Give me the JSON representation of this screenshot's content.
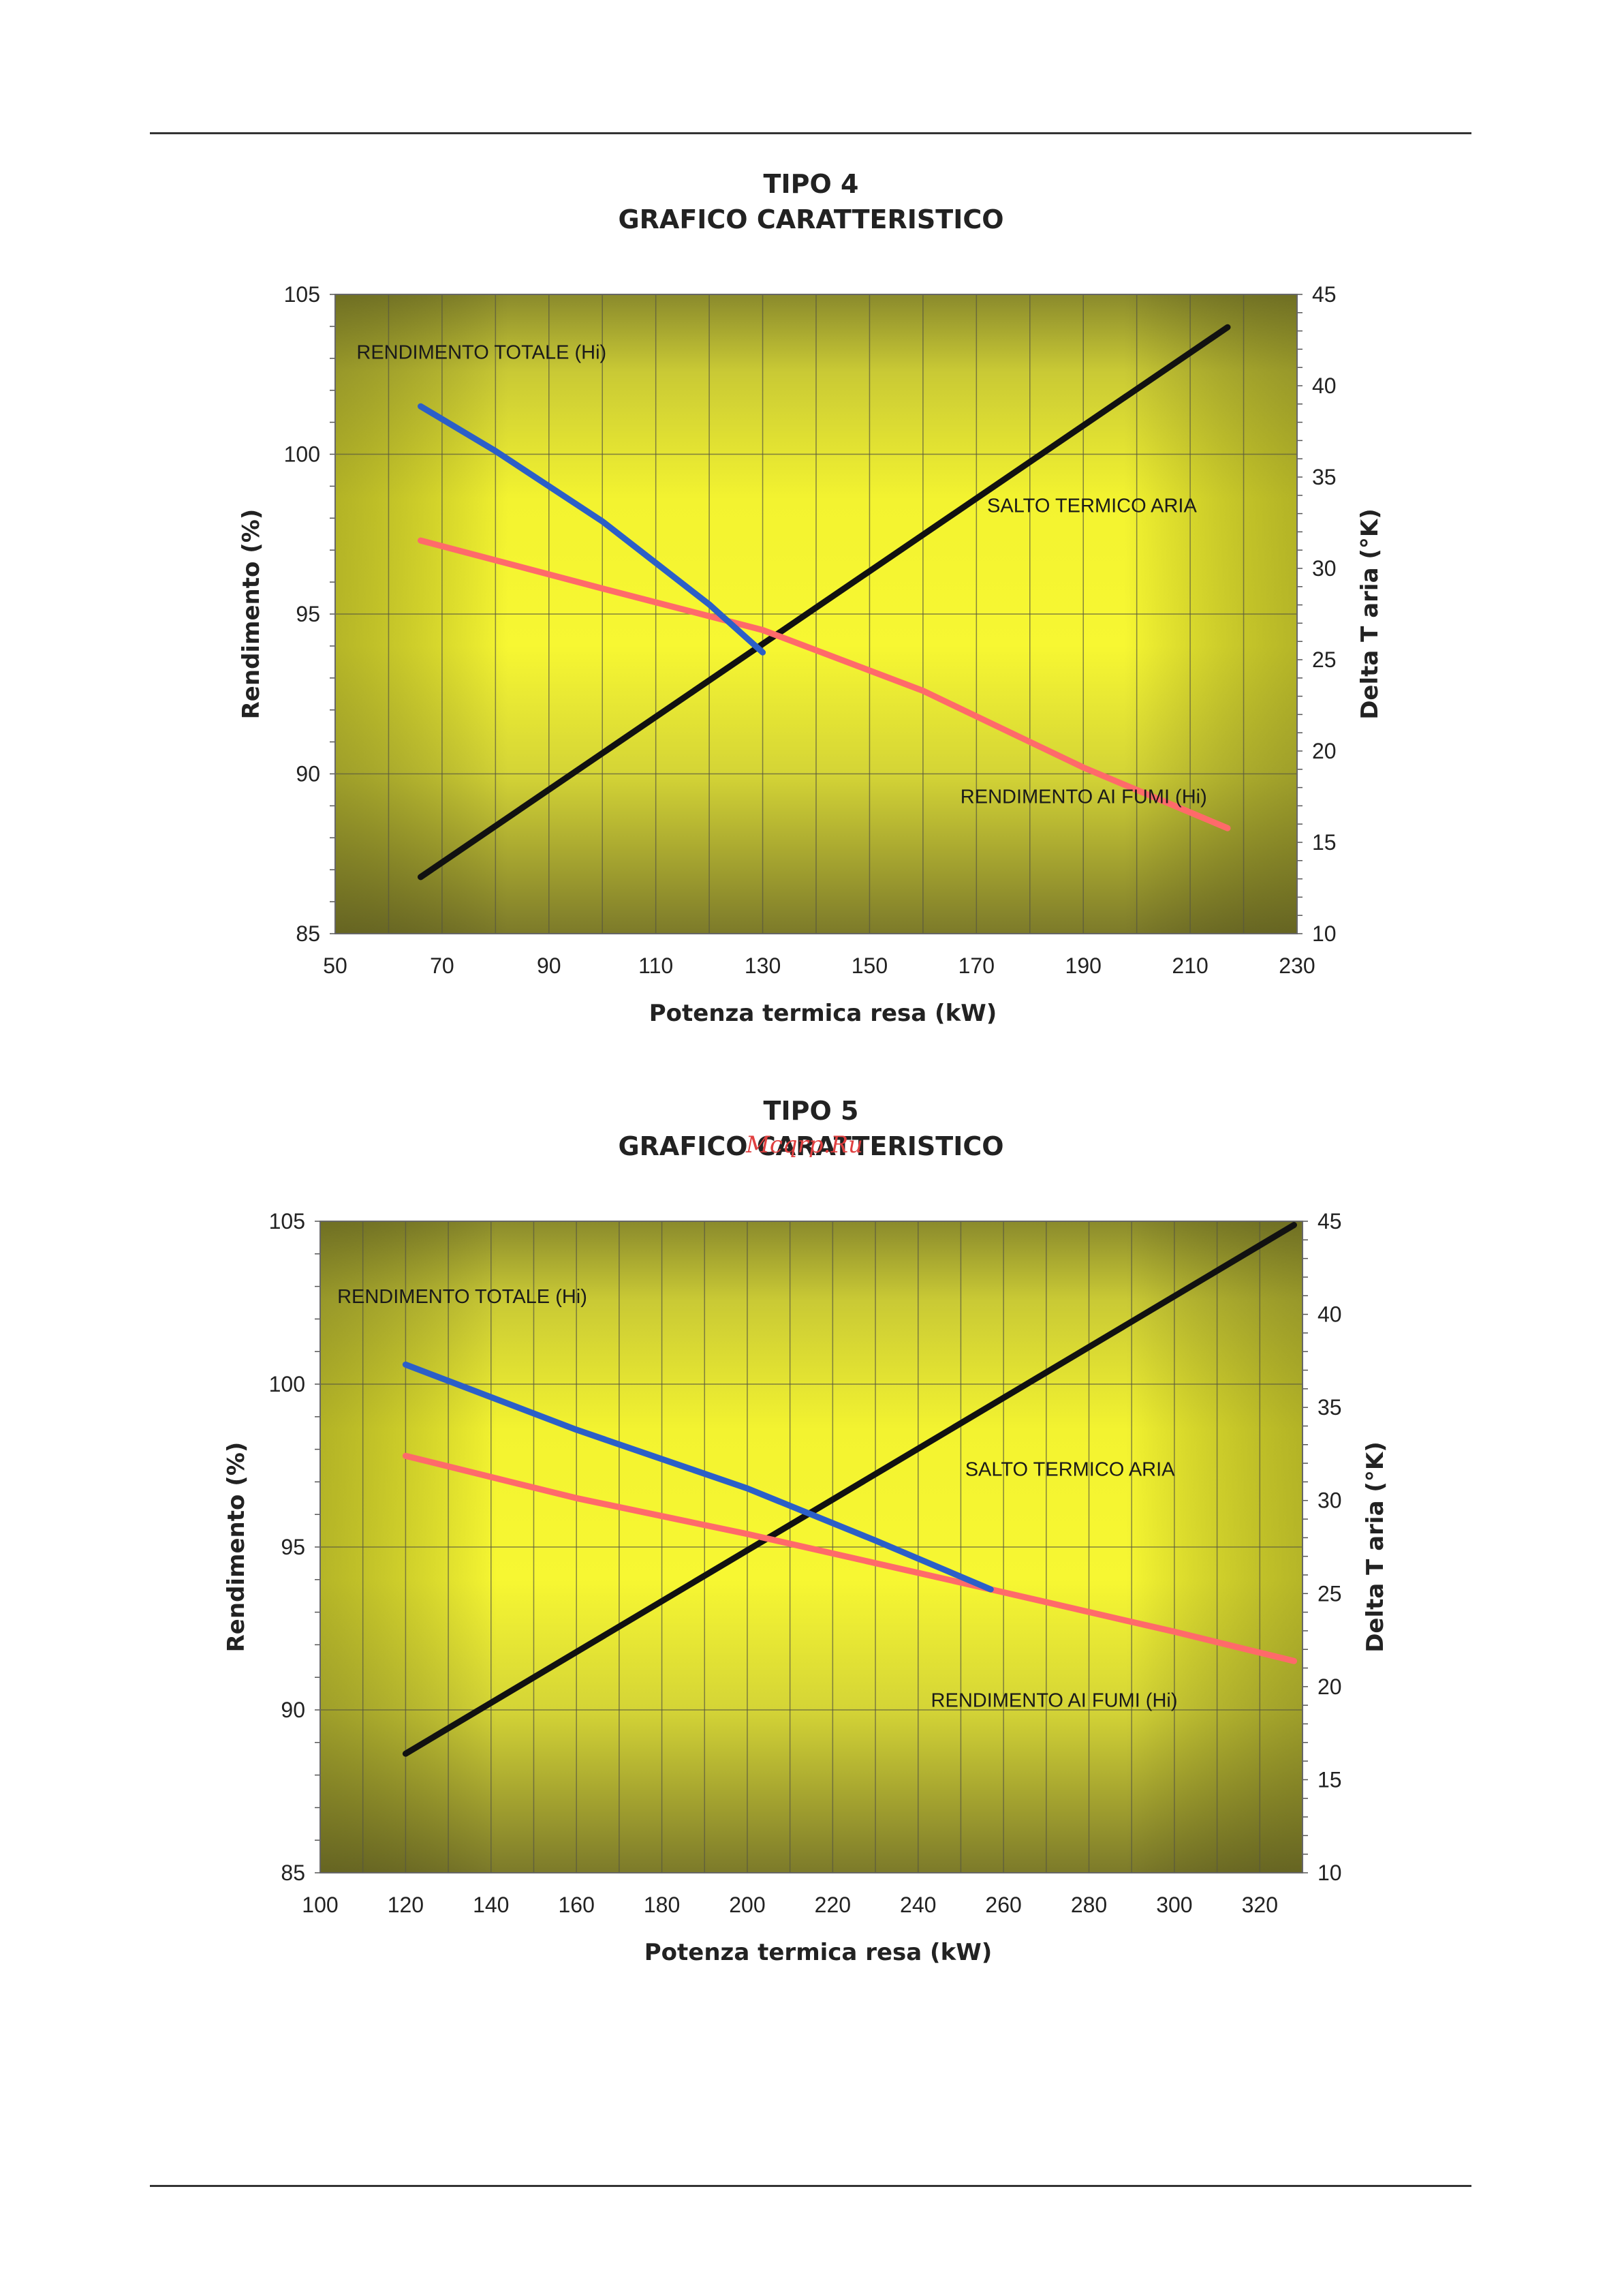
{
  "charts": [
    {
      "title_line1": "TIPO 4",
      "title_line2": "GRAFICO CARATTERISTICO"
    },
    {
      "title_line1": "TIPO 5",
      "title_line2": "GRAFICO CARATTERISTICO",
      "watermark": "Mcqrp.Ru"
    }
  ],
  "chart_data": [
    {
      "type": "line",
      "title": "TIPO 4 GRAFICO CARATTERISTICO",
      "xlabel": "Potenza termica resa (kW)",
      "ylabel": "Rendimento (%)",
      "y2label": "Delta T aria (°K)",
      "xlim": [
        50,
        230
      ],
      "ylim": [
        85,
        105
      ],
      "y2lim": [
        10,
        45
      ],
      "xticks": [
        50,
        70,
        90,
        110,
        130,
        150,
        170,
        190,
        210,
        230
      ],
      "yticks": [
        85,
        90,
        95,
        100,
        105
      ],
      "y2ticks": [
        10,
        15,
        20,
        25,
        30,
        35,
        40,
        45
      ],
      "grid": true,
      "series": [
        {
          "name": "RENDIMENTO TOTALE (Hi)",
          "axis": "left",
          "color": "#2b5fc8",
          "x": [
            66,
            80,
            100,
            120,
            130
          ],
          "y": [
            101.5,
            100.1,
            97.9,
            95.3,
            93.8
          ]
        },
        {
          "name": "RENDIMENTO AI FUMI (Hi)",
          "axis": "left",
          "color": "#ff6a6a",
          "x": [
            66,
            100,
            130,
            160,
            190,
            217
          ],
          "y": [
            97.3,
            95.8,
            94.5,
            92.6,
            90.2,
            88.3
          ]
        },
        {
          "name": "SALTO TERMICO ARIA",
          "axis": "right",
          "color": "#111111",
          "x": [
            66,
            217
          ],
          "y": [
            13.1,
            43.2
          ]
        }
      ],
      "annotations": [
        {
          "text": "RENDIMENTO TOTALE (Hi)",
          "x": 54,
          "y": 103.2
        },
        {
          "text": "SALTO TERMICO ARIA",
          "x": 172,
          "y": 98.4
        },
        {
          "text": "RENDIMENTO AI FUMI (Hi)",
          "x": 167,
          "y": 89.3
        }
      ]
    },
    {
      "type": "line",
      "title": "TIPO 5 GRAFICO CARATTERISTICO",
      "xlabel": "Potenza termica resa (kW)",
      "ylabel": "Rendimento (%)",
      "y2label": "Delta T aria (°K)",
      "xlim": [
        100,
        330
      ],
      "ylim": [
        85,
        105
      ],
      "y2lim": [
        10,
        45
      ],
      "xticks": [
        100,
        120,
        140,
        160,
        180,
        200,
        220,
        240,
        260,
        280,
        300,
        320
      ],
      "yticks": [
        85,
        90,
        95,
        100,
        105
      ],
      "y2ticks": [
        10,
        15,
        20,
        25,
        30,
        35,
        40,
        45
      ],
      "grid": true,
      "series": [
        {
          "name": "RENDIMENTO TOTALE (Hi)",
          "axis": "left",
          "color": "#2b5fc8",
          "x": [
            120,
            160,
            200,
            230,
            257
          ],
          "y": [
            100.6,
            98.6,
            96.8,
            95.2,
            93.7
          ]
        },
        {
          "name": "RENDIMENTO AI FUMI (Hi)",
          "axis": "left",
          "color": "#ff6a6a",
          "x": [
            120,
            160,
            200,
            257,
            300,
            328
          ],
          "y": [
            97.8,
            96.5,
            95.4,
            93.7,
            92.4,
            91.5
          ]
        },
        {
          "name": "SALTO TERMICO ARIA",
          "axis": "right",
          "color": "#111111",
          "x": [
            120,
            328
          ],
          "y": [
            16.4,
            44.8
          ]
        }
      ],
      "annotations": [
        {
          "text": "RENDIMENTO TOTALE (Hi)",
          "x": 104,
          "y": 102.7
        },
        {
          "text": "SALTO TERMICO ARIA",
          "x": 251,
          "y": 97.4
        },
        {
          "text": "RENDIMENTO AI FUMI (Hi)",
          "x": 243,
          "y": 90.3
        }
      ]
    }
  ]
}
